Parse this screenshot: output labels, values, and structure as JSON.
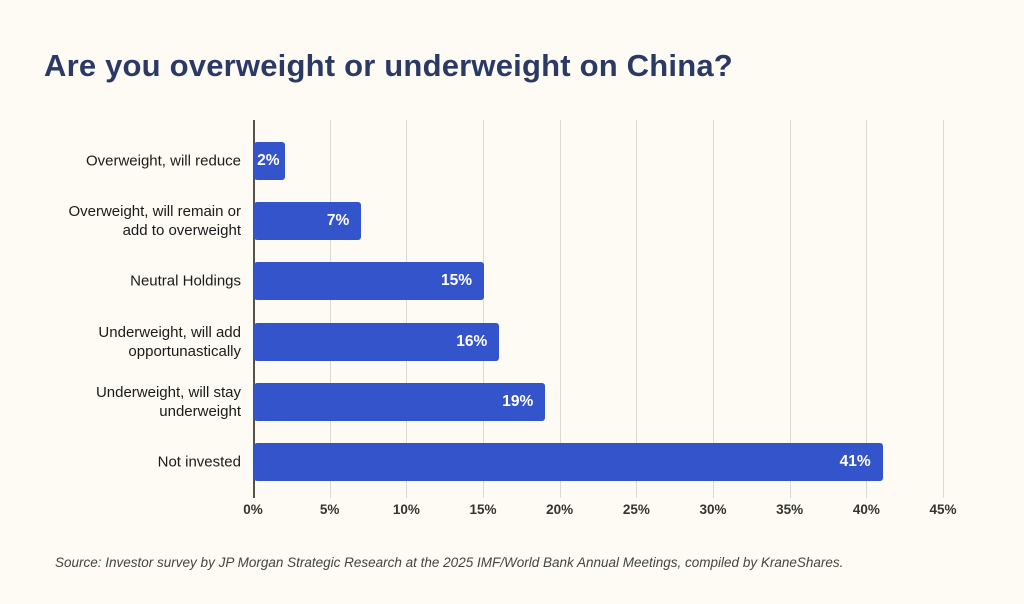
{
  "title": "Are you overweight or underweight on China?",
  "source": "Source: Investor survey by JP Morgan Strategic Research at the 2025 IMF/World Bank Annual Meetings, compiled by KraneShares.",
  "colors": {
    "background": "#FDFBF4",
    "bar": "#3354CB",
    "title_text": "#2B3A64",
    "grid_line": "#DCD9D2",
    "axis_line": "#55524C",
    "value_label": "#FFFFFF"
  },
  "chart_data": {
    "type": "bar",
    "orientation": "horizontal",
    "title": "Are you overweight or underweight on China?",
    "categories": [
      "Overweight, will reduce",
      "Overweight, will remain or\nadd to overweight",
      "Neutral Holdings",
      "Underweight, will add\nopportunastically",
      "Underweight, will stay\nunderweight",
      "Not invested"
    ],
    "values": [
      2,
      7,
      15,
      16,
      19,
      41
    ],
    "value_labels": [
      "2%",
      "7%",
      "15%",
      "16%",
      "19%",
      "41%"
    ],
    "x_tick_values": [
      0,
      5,
      10,
      15,
      20,
      25,
      30,
      35,
      40,
      45
    ],
    "x_tick_labels": [
      "0%",
      "5%",
      "10%",
      "15%",
      "20%",
      "25%",
      "30%",
      "35%",
      "40%",
      "45%"
    ],
    "xlim": [
      0,
      45
    ],
    "xlabel": "",
    "ylabel": "",
    "grid": true,
    "legend": false
  }
}
